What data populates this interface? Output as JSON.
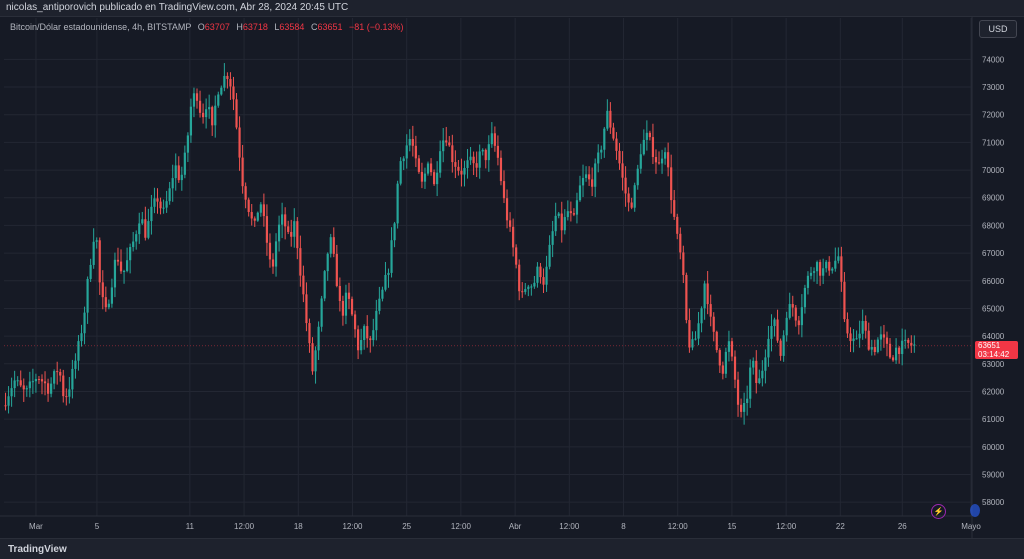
{
  "header": {
    "byline": "nicolas_antiporovich publicado en TradingView.com, Abr 28, 2024 20:45 UTC"
  },
  "legend": {
    "symbol": "Bitcoin/Dólar estadounidense, 4h, BITSTAMP",
    "o_label": "O",
    "o_value": "63707",
    "h_label": "H",
    "h_value": "63718",
    "l_label": "L",
    "l_value": "63584",
    "c_label": "C",
    "c_value": "63651",
    "change": "−81 (−0.13%)"
  },
  "currency_button": "USD",
  "price_label": {
    "price": "63651",
    "countdown": "03:14:42"
  },
  "footer": {
    "logo_text": "TradingView"
  },
  "colors": {
    "up": "#26a69a",
    "down": "#ef5350",
    "background": "#161a25",
    "grid": "#232733",
    "axis_text": "#b2b5be"
  },
  "chart_data": {
    "type": "candlestick",
    "title": "Bitcoin/Dólar estadounidense, 4h, BITSTAMP",
    "ylim": [
      57500,
      74700
    ],
    "y_ticks": [
      58000,
      59000,
      60000,
      61000,
      62000,
      63000,
      64000,
      65000,
      66000,
      67000,
      68000,
      69000,
      70000,
      71000,
      72000,
      73000,
      74000
    ],
    "x_ticks": [
      {
        "label": "Mar",
        "pos": 0.033
      },
      {
        "label": "5",
        "pos": 0.096
      },
      {
        "label": "11",
        "pos": 0.192
      },
      {
        "label": "12:00",
        "pos": 0.248
      },
      {
        "label": "18",
        "pos": 0.304
      },
      {
        "label": "12:00",
        "pos": 0.36
      },
      {
        "label": "25",
        "pos": 0.416
      },
      {
        "label": "12:00",
        "pos": 0.472
      },
      {
        "label": "Abr",
        "pos": 0.528
      },
      {
        "label": "12:00",
        "pos": 0.584
      },
      {
        "label": "8",
        "pos": 0.64
      },
      {
        "label": "12:00",
        "pos": 0.696
      },
      {
        "label": "15",
        "pos": 0.752
      },
      {
        "label": "12:00",
        "pos": 0.808
      },
      {
        "label": "22",
        "pos": 0.864
      },
      {
        "label": "26",
        "pos": 0.928
      },
      {
        "label": "Mayo",
        "pos": 0.999
      }
    ],
    "path": [
      [
        0,
        61500
      ],
      [
        0.012,
        62400
      ],
      [
        0.024,
        61900
      ],
      [
        0.036,
        62600
      ],
      [
        0.048,
        62100
      ],
      [
        0.058,
        62900
      ],
      [
        0.064,
        61700
      ],
      [
        0.07,
        62300
      ],
      [
        0.078,
        63500
      ],
      [
        0.084,
        64700
      ],
      [
        0.09,
        66500
      ],
      [
        0.096,
        68100
      ],
      [
        0.1,
        66000
      ],
      [
        0.106,
        64700
      ],
      [
        0.112,
        65800
      ],
      [
        0.118,
        67000
      ],
      [
        0.124,
        66200
      ],
      [
        0.13,
        66800
      ],
      [
        0.136,
        67500
      ],
      [
        0.142,
        68400
      ],
      [
        0.148,
        67700
      ],
      [
        0.154,
        68500
      ],
      [
        0.16,
        69000
      ],
      [
        0.166,
        68400
      ],
      [
        0.172,
        69100
      ],
      [
        0.178,
        70200
      ],
      [
        0.184,
        69600
      ],
      [
        0.19,
        70700
      ],
      [
        0.194,
        72200
      ],
      [
        0.2,
        72900
      ],
      [
        0.206,
        71900
      ],
      [
        0.212,
        72600
      ],
      [
        0.216,
        71200
      ],
      [
        0.222,
        72900
      ],
      [
        0.228,
        73300
      ],
      [
        0.233,
        73500
      ],
      [
        0.238,
        72800
      ],
      [
        0.243,
        71200
      ],
      [
        0.248,
        69600
      ],
      [
        0.254,
        68700
      ],
      [
        0.26,
        67800
      ],
      [
        0.266,
        69000
      ],
      [
        0.272,
        67700
      ],
      [
        0.278,
        66200
      ],
      [
        0.284,
        67800
      ],
      [
        0.29,
        68300
      ],
      [
        0.296,
        67400
      ],
      [
        0.302,
        68100
      ],
      [
        0.308,
        66300
      ],
      [
        0.314,
        64500
      ],
      [
        0.32,
        62700
      ],
      [
        0.326,
        64000
      ],
      [
        0.332,
        65900
      ],
      [
        0.338,
        67600
      ],
      [
        0.344,
        66400
      ],
      [
        0.35,
        64700
      ],
      [
        0.356,
        65500
      ],
      [
        0.362,
        64600
      ],
      [
        0.368,
        63500
      ],
      [
        0.374,
        64200
      ],
      [
        0.38,
        63700
      ],
      [
        0.386,
        64700
      ],
      [
        0.392,
        65500
      ],
      [
        0.398,
        66300
      ],
      [
        0.404,
        67800
      ],
      [
        0.41,
        70200
      ],
      [
        0.416,
        70800
      ],
      [
        0.422,
        71200
      ],
      [
        0.428,
        70000
      ],
      [
        0.434,
        69400
      ],
      [
        0.44,
        70500
      ],
      [
        0.446,
        69400
      ],
      [
        0.452,
        70900
      ],
      [
        0.458,
        71300
      ],
      [
        0.464,
        70500
      ],
      [
        0.47,
        70100
      ],
      [
        0.476,
        69900
      ],
      [
        0.482,
        70300
      ],
      [
        0.488,
        70100
      ],
      [
        0.494,
        70600
      ],
      [
        0.5,
        70500
      ],
      [
        0.506,
        71200
      ],
      [
        0.512,
        70400
      ],
      [
        0.518,
        68900
      ],
      [
        0.524,
        67800
      ],
      [
        0.53,
        66700
      ],
      [
        0.536,
        65300
      ],
      [
        0.542,
        66000
      ],
      [
        0.548,
        65800
      ],
      [
        0.554,
        66500
      ],
      [
        0.56,
        65900
      ],
      [
        0.566,
        67300
      ],
      [
        0.572,
        68400
      ],
      [
        0.578,
        67900
      ],
      [
        0.584,
        68500
      ],
      [
        0.59,
        68100
      ],
      [
        0.596,
        69300
      ],
      [
        0.602,
        69800
      ],
      [
        0.608,
        69500
      ],
      [
        0.614,
        70200
      ],
      [
        0.62,
        71100
      ],
      [
        0.624,
        72100
      ],
      [
        0.63,
        71400
      ],
      [
        0.636,
        70500
      ],
      [
        0.642,
        69400
      ],
      [
        0.648,
        68600
      ],
      [
        0.654,
        69400
      ],
      [
        0.66,
        70900
      ],
      [
        0.666,
        71200
      ],
      [
        0.672,
        70700
      ],
      [
        0.678,
        70100
      ],
      [
        0.684,
        71000
      ],
      [
        0.69,
        69300
      ],
      [
        0.696,
        67700
      ],
      [
        0.702,
        66600
      ],
      [
        0.708,
        63800
      ],
      [
        0.714,
        63600
      ],
      [
        0.72,
        64600
      ],
      [
        0.726,
        66100
      ],
      [
        0.732,
        64400
      ],
      [
        0.738,
        63500
      ],
      [
        0.744,
        62800
      ],
      [
        0.75,
        63800
      ],
      [
        0.756,
        62600
      ],
      [
        0.762,
        61000
      ],
      [
        0.768,
        61500
      ],
      [
        0.774,
        63200
      ],
      [
        0.78,
        62100
      ],
      [
        0.786,
        63000
      ],
      [
        0.792,
        64300
      ],
      [
        0.798,
        64400
      ],
      [
        0.804,
        63300
      ],
      [
        0.81,
        64900
      ],
      [
        0.816,
        65100
      ],
      [
        0.822,
        64500
      ],
      [
        0.828,
        65600
      ],
      [
        0.834,
        66300
      ],
      [
        0.84,
        66700
      ],
      [
        0.846,
        66300
      ],
      [
        0.852,
        66500
      ],
      [
        0.858,
        66600
      ],
      [
        0.864,
        66900
      ],
      [
        0.87,
        64300
      ],
      [
        0.876,
        64000
      ],
      [
        0.882,
        63700
      ],
      [
        0.888,
        64500
      ],
      [
        0.894,
        63800
      ],
      [
        0.9,
        63500
      ],
      [
        0.906,
        64000
      ],
      [
        0.912,
        63700
      ],
      [
        0.918,
        63200
      ],
      [
        0.924,
        63600
      ],
      [
        0.93,
        63600
      ],
      [
        0.936,
        63700
      ],
      [
        0.942,
        63651
      ]
    ]
  }
}
